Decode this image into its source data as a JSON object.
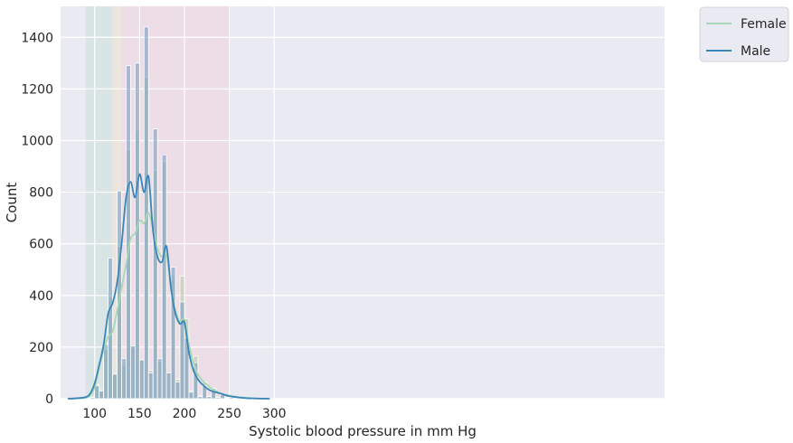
{
  "chart_data": {
    "type": "histogram",
    "xlabel": "Systolic blood pressure in mm Hg",
    "ylabel": "Count",
    "xlim": [
      62,
      735
    ],
    "ylim": [
      0,
      1520
    ],
    "xticks": [
      100,
      150,
      200,
      250,
      300
    ],
    "yticks": [
      0,
      200,
      400,
      600,
      800,
      1000,
      1200,
      1400
    ],
    "grid": true,
    "legend_position": "outside-top-right",
    "shaded_regions": [
      {
        "x0": 90,
        "x1": 120,
        "color": "#9fd4b4",
        "opacity": 0.22
      },
      {
        "x0": 120,
        "x1": 130,
        "color": "#f2dcb0",
        "opacity": 0.3
      },
      {
        "x0": 130,
        "x1": 250,
        "color": "#f4c2cf",
        "opacity": 0.32
      }
    ],
    "bin_width": 5,
    "bins_left": [
      95,
      100,
      105,
      110,
      115,
      120,
      125,
      130,
      135,
      140,
      145,
      150,
      155,
      160,
      165,
      170,
      175,
      180,
      185,
      190,
      195,
      200,
      205,
      210,
      215,
      220,
      225,
      230,
      235,
      240,
      245,
      250
    ],
    "series": [
      {
        "name": "Female",
        "color": "#a6d8b6",
        "hist_color": "#b5c9a4",
        "counts": [
          5,
          55,
          35,
          190,
          395,
          95,
          590,
          130,
          965,
          200,
          1040,
          150,
          1245,
          110,
          885,
          145,
          920,
          100,
          480,
          75,
          475,
          310,
          30,
          165,
          10,
          65,
          10,
          40,
          5,
          20,
          3,
          5
        ],
        "kde_x": [
          70,
          80,
          90,
          95,
          100,
          105,
          110,
          115,
          120,
          125,
          130,
          135,
          140,
          145,
          150,
          155,
          160,
          165,
          170,
          175,
          180,
          185,
          190,
          195,
          200,
          205,
          210,
          215,
          220,
          225,
          230,
          235,
          240,
          250,
          260,
          270,
          280,
          295
        ],
        "kde_y": [
          0,
          1,
          4,
          12,
          45,
          120,
          190,
          240,
          260,
          340,
          430,
          520,
          620,
          640,
          690,
          680,
          720,
          660,
          580,
          550,
          560,
          430,
          340,
          300,
          305,
          210,
          140,
          95,
          70,
          55,
          40,
          30,
          22,
          12,
          6,
          3,
          1,
          0
        ]
      },
      {
        "name": "Male",
        "color": "#3b86b8",
        "hist_color": "#7b9ec4",
        "counts": [
          5,
          50,
          30,
          210,
          545,
          95,
          805,
          155,
          1290,
          205,
          1300,
          150,
          1440,
          100,
          1045,
          155,
          945,
          100,
          510,
          65,
          375,
          235,
          25,
          140,
          8,
          50,
          8,
          40,
          5,
          15,
          3,
          5
        ],
        "kde_x": [
          70,
          80,
          90,
          95,
          100,
          105,
          110,
          115,
          120,
          125,
          130,
          135,
          140,
          145,
          150,
          155,
          160,
          165,
          170,
          175,
          180,
          185,
          190,
          195,
          200,
          205,
          210,
          215,
          220,
          225,
          230,
          235,
          240,
          250,
          260,
          270,
          280,
          295
        ],
        "kde_y": [
          0,
          2,
          6,
          20,
          60,
          130,
          210,
          330,
          370,
          450,
          600,
          780,
          840,
          780,
          870,
          800,
          860,
          650,
          550,
          530,
          590,
          430,
          330,
          290,
          295,
          180,
          110,
          75,
          55,
          40,
          30,
          25,
          20,
          10,
          5,
          2,
          1,
          0
        ]
      }
    ]
  }
}
